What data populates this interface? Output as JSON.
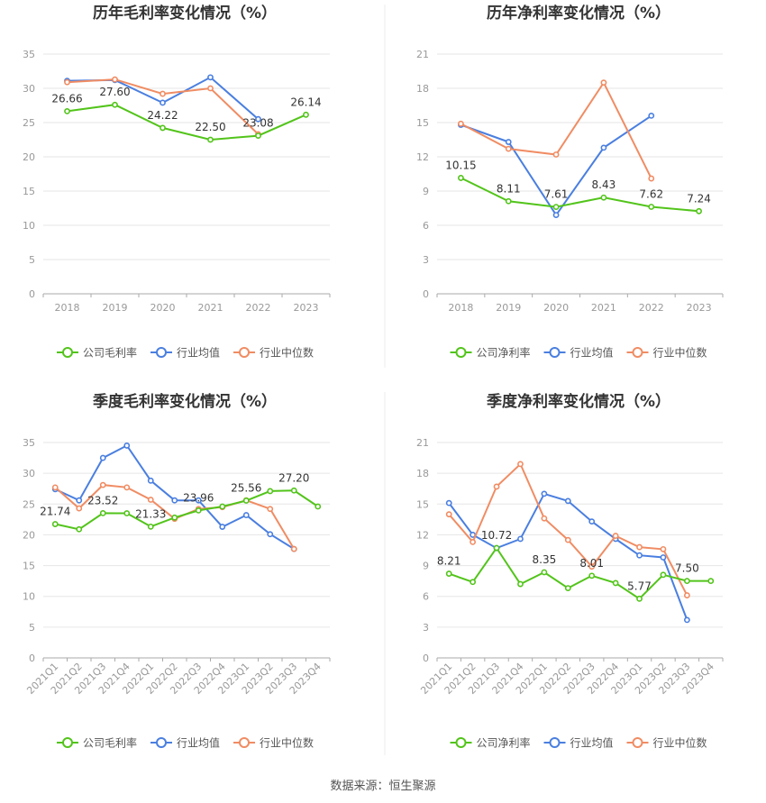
{
  "colors": {
    "company": "#52c41a",
    "industry_avg": "#4a7fe0",
    "industry_median": "#f08c63",
    "grid": "#e6e6e6",
    "axis": "#999999",
    "text": "#333333",
    "tick": "#999999"
  },
  "footer": {
    "source": "数据来源：恒生聚源"
  },
  "chart_data": [
    {
      "type": "line",
      "title": "历年毛利率变化情况（%）",
      "categories": [
        "2018",
        "2019",
        "2020",
        "2021",
        "2022",
        "2023"
      ],
      "ylim": [
        0,
        35
      ],
      "yticks": [
        "0",
        "5",
        "10",
        "15",
        "20",
        "25",
        "30",
        "35"
      ],
      "grid": true,
      "legend_position": "bottom",
      "series": [
        {
          "name": "公司毛利率",
          "color_key": "company",
          "values": [
            26.66,
            27.6,
            24.22,
            22.5,
            23.08,
            26.14
          ],
          "labels": [
            "26.66",
            "27.60",
            "24.22",
            "22.50",
            "23.08",
            "26.14"
          ]
        },
        {
          "name": "行业均值",
          "color_key": "industry_avg",
          "values": [
            31.1,
            31.2,
            27.9,
            31.6,
            25.5,
            null
          ]
        },
        {
          "name": "行业中位数",
          "color_key": "industry_median",
          "values": [
            30.9,
            31.3,
            29.2,
            30.0,
            23.3,
            null
          ]
        }
      ]
    },
    {
      "type": "line",
      "title": "历年净利率变化情况（%）",
      "categories": [
        "2018",
        "2019",
        "2020",
        "2021",
        "2022",
        "2023"
      ],
      "ylim": [
        0,
        21
      ],
      "yticks": [
        "0",
        "3",
        "6",
        "9",
        "12",
        "15",
        "18",
        "21"
      ],
      "grid": true,
      "legend_position": "bottom",
      "series": [
        {
          "name": "公司净利率",
          "color_key": "company",
          "values": [
            10.15,
            8.11,
            7.61,
            8.43,
            7.62,
            7.24
          ],
          "labels": [
            "10.15",
            "8.11",
            "7.61",
            "8.43",
            "7.62",
            "7.24"
          ]
        },
        {
          "name": "行业均值",
          "color_key": "industry_avg",
          "values": [
            14.8,
            13.3,
            6.9,
            12.8,
            15.6,
            null
          ]
        },
        {
          "name": "行业中位数",
          "color_key": "industry_median",
          "values": [
            14.9,
            12.7,
            12.2,
            18.5,
            10.1,
            null
          ]
        }
      ]
    },
    {
      "type": "line",
      "title": "季度毛利率变化情况（%）",
      "categories": [
        "2021Q1",
        "2021Q2",
        "2021Q3",
        "2021Q4",
        "2022Q1",
        "2022Q2",
        "2022Q3",
        "2022Q4",
        "2023Q1",
        "2023Q2",
        "2023Q3",
        "2023Q4"
      ],
      "ylim": [
        0,
        35
      ],
      "yticks": [
        "0",
        "5",
        "10",
        "15",
        "20",
        "25",
        "30",
        "35"
      ],
      "grid": true,
      "legend_position": "bottom",
      "series": [
        {
          "name": "公司毛利率",
          "color_key": "company",
          "values": [
            21.74,
            20.9,
            23.52,
            23.5,
            21.33,
            22.8,
            23.96,
            24.6,
            25.56,
            27.1,
            27.2,
            24.6
          ],
          "labels": [
            "21.74",
            "",
            "23.52",
            "",
            "21.33",
            "",
            "23.96",
            "",
            "25.56",
            "",
            "27.20",
            ""
          ]
        },
        {
          "name": "行业均值",
          "color_key": "industry_avg",
          "values": [
            27.4,
            25.6,
            32.5,
            34.5,
            28.8,
            25.6,
            25.6,
            21.3,
            23.2,
            20.1,
            17.7,
            null
          ]
        },
        {
          "name": "行业中位数",
          "color_key": "industry_median",
          "values": [
            27.7,
            24.3,
            28.1,
            27.7,
            25.7,
            22.6,
            24.2,
            24.5,
            25.6,
            24.2,
            17.7,
            null
          ]
        }
      ]
    },
    {
      "type": "line",
      "title": "季度净利率变化情况（%）",
      "categories": [
        "2021Q1",
        "2021Q2",
        "2021Q3",
        "2021Q4",
        "2022Q1",
        "2022Q2",
        "2022Q3",
        "2022Q4",
        "2023Q1",
        "2023Q2",
        "2023Q3",
        "2023Q4"
      ],
      "ylim": [
        0,
        21
      ],
      "yticks": [
        "0",
        "3",
        "6",
        "9",
        "12",
        "15",
        "18",
        "21"
      ],
      "grid": true,
      "legend_position": "bottom",
      "series": [
        {
          "name": "公司净利率",
          "color_key": "company",
          "values": [
            8.21,
            7.4,
            10.72,
            7.2,
            8.35,
            6.8,
            8.01,
            7.3,
            5.77,
            8.1,
            7.5,
            7.5
          ],
          "labels": [
            "8.21",
            "",
            "10.72",
            "",
            "8.35",
            "",
            "8.01",
            "",
            "5.77",
            "",
            "7.50",
            ""
          ]
        },
        {
          "name": "行业均值",
          "color_key": "industry_avg",
          "values": [
            15.1,
            12.0,
            10.7,
            11.6,
            16.0,
            15.3,
            13.3,
            11.6,
            10.0,
            9.8,
            3.7,
            null
          ]
        },
        {
          "name": "行业中位数",
          "color_key": "industry_median",
          "values": [
            14.0,
            11.3,
            16.7,
            18.9,
            13.6,
            11.5,
            8.9,
            11.9,
            10.8,
            10.6,
            6.1,
            null
          ]
        }
      ]
    }
  ]
}
